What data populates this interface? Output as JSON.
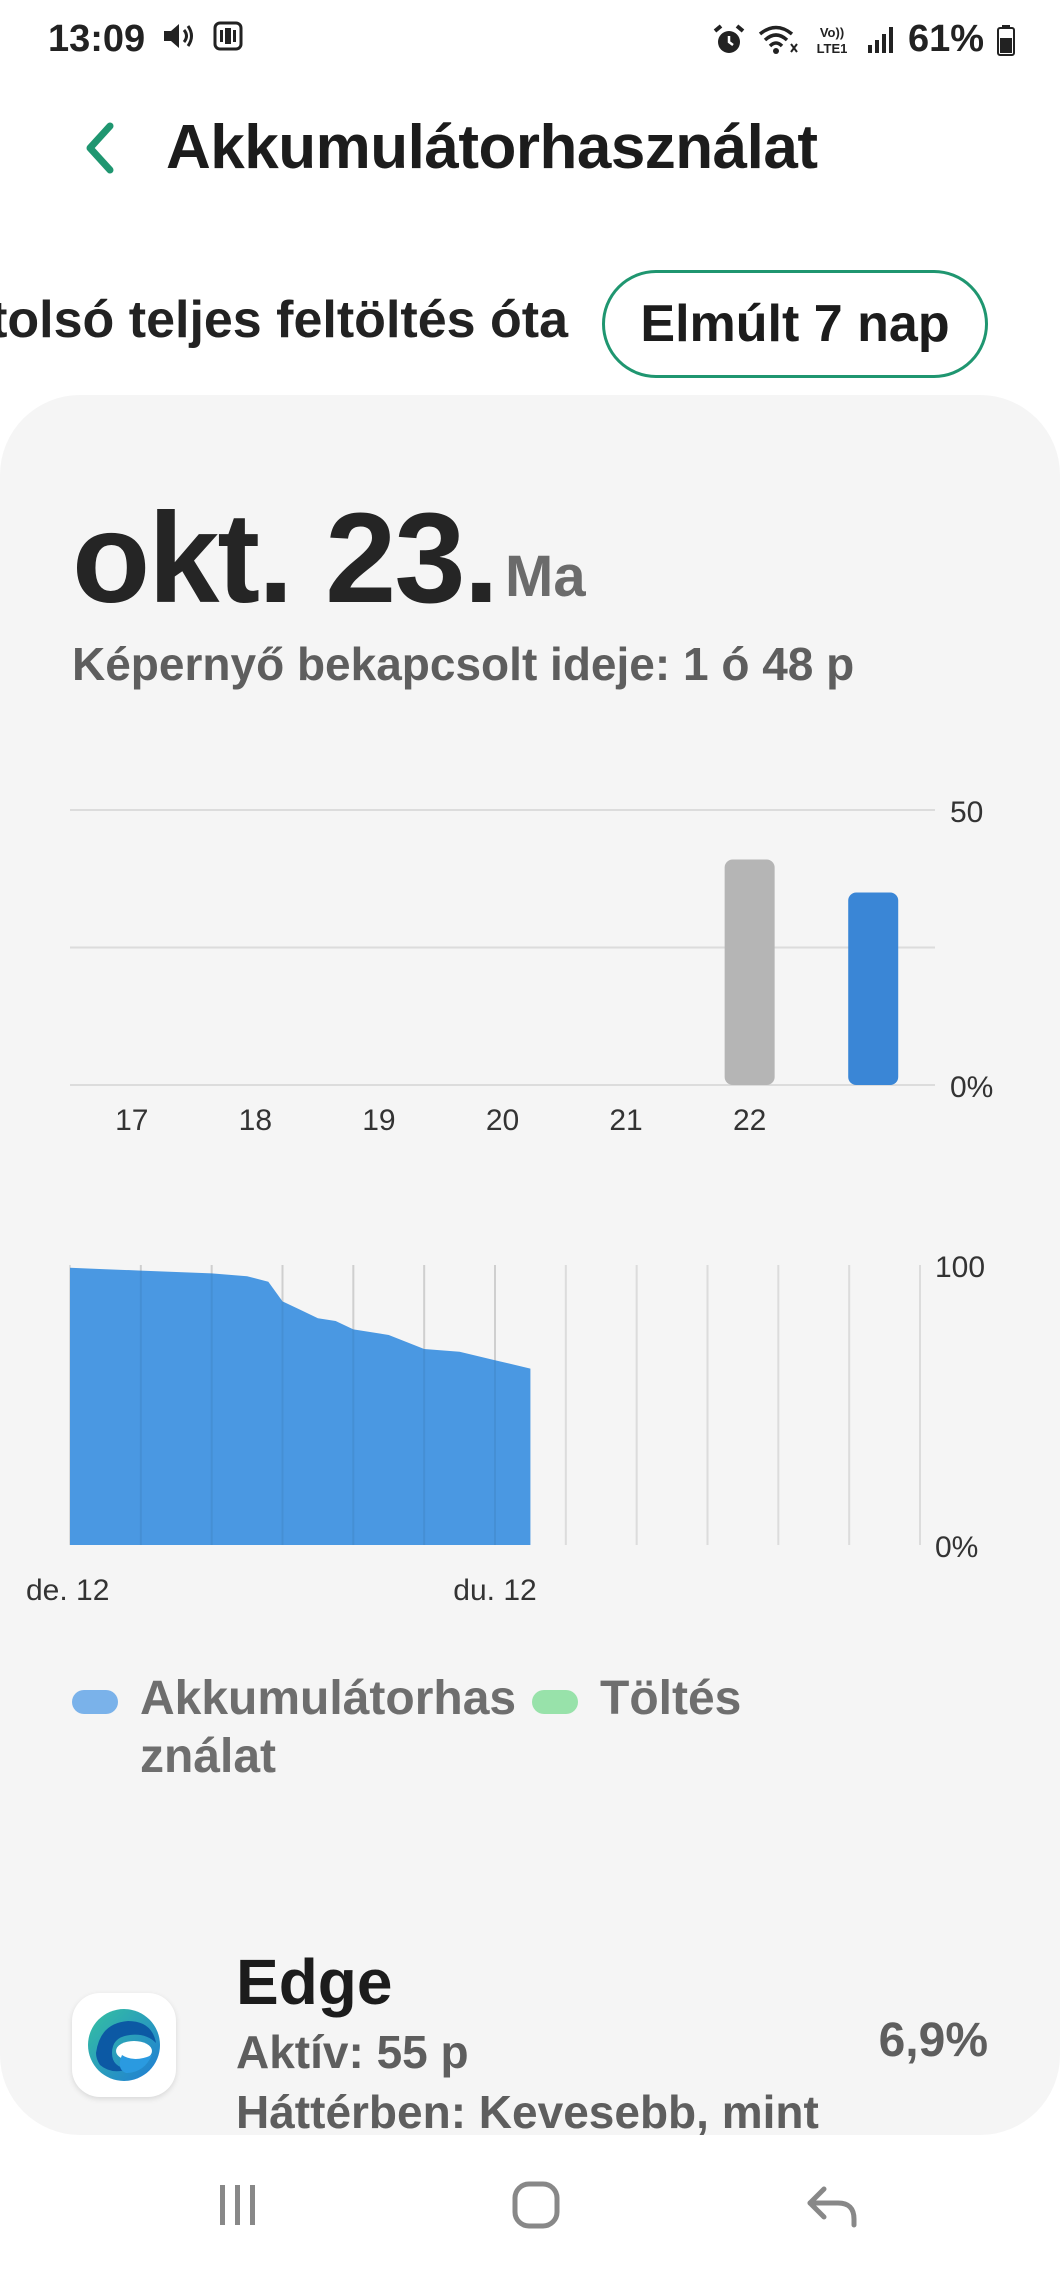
{
  "status_bar": {
    "time": "13:09",
    "battery": "61%",
    "left_icons": [
      "volume-icon",
      "notification-icon"
    ],
    "right_icons": [
      "alarm-icon",
      "wifi-icon",
      "volte-icon",
      "signal-icon",
      "battery-icon"
    ],
    "volte_line1": "Vo))",
    "volte_line2": "LTE1"
  },
  "header": {
    "title": "Akkumulátorhasználat",
    "back_icon": "chevron-left-icon"
  },
  "tabs": {
    "since_charge": "Utolsó teljes feltöltés óta",
    "last_7_days": "Elmúlt 7 nap"
  },
  "summary": {
    "date": "okt. 23.",
    "day_label": "Ma",
    "screen_on": "Képernyő bekapcsolt ideje: 1 ó 48 p"
  },
  "chart_data": [
    {
      "type": "bar",
      "categories": [
        "17",
        "18",
        "19",
        "20",
        "21",
        "22",
        "23"
      ],
      "x_tick_labels": [
        "17",
        "18",
        "19",
        "20",
        "21",
        "22",
        ""
      ],
      "values": [
        0,
        0,
        0,
        0,
        0,
        41,
        35
      ],
      "colors": [
        "#b5b5b5",
        "#b5b5b5",
        "#b5b5b5",
        "#b5b5b5",
        "#b5b5b5",
        "#b5b5b5",
        "#3a86d6"
      ],
      "y_ticks": [
        "50",
        "0%"
      ],
      "ylim": [
        0,
        50
      ],
      "grid": true
    },
    {
      "type": "area",
      "x_range_hours": [
        0,
        24
      ],
      "x": [
        0,
        1,
        2,
        3,
        4,
        5,
        5.6,
        6,
        6.5,
        7,
        7.5,
        8,
        9,
        10,
        11,
        12,
        13
      ],
      "y": [
        99,
        98.5,
        98,
        97.5,
        97,
        96,
        94,
        87,
        84,
        81,
        80,
        77,
        75,
        70,
        69,
        66,
        63
      ],
      "x_tick_labels": [
        "de. 12",
        "du. 12"
      ],
      "y_ticks": [
        "100",
        "0%"
      ],
      "ylim": [
        0,
        100
      ],
      "series": [
        {
          "name": "Akkumulátorhasználat",
          "color": "#4a98e2"
        },
        {
          "name": "Töltés",
          "color": "#98e2aa"
        }
      ],
      "grid": true
    }
  ],
  "legend": {
    "usage_label_line1": "Akkumulátorhas",
    "usage_label_line2": "ználat",
    "usage_color": "#7ab2ea",
    "charging_label": "Töltés",
    "charging_color": "#98e2aa"
  },
  "apps": [
    {
      "name": "Edge",
      "icon": "edge-icon",
      "active": "Aktív: 55 p",
      "background": "Háttérben: Kevesebb, mint",
      "percent": "6,9%"
    }
  ],
  "nav": {
    "recents_icon": "recents-icon",
    "home_icon": "home-icon",
    "back_icon": "back-arrow-icon"
  },
  "colors": {
    "accent": "#1f9670",
    "bar_today": "#3a86d6",
    "bar_past": "#b5b5b5",
    "area": "#4a98e2"
  }
}
